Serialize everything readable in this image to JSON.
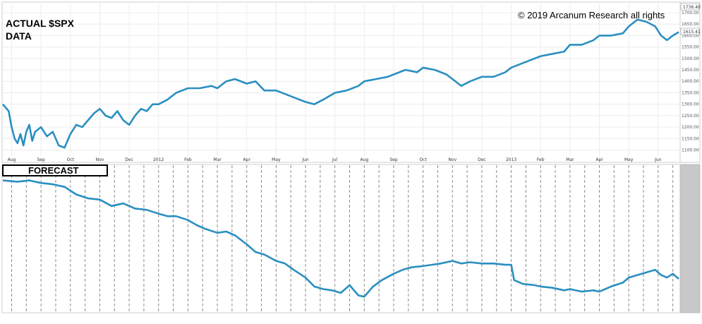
{
  "chart_data": [
    {
      "type": "line",
      "title": "ACTUAL $SPX",
      "subtitle": "DATA",
      "annotation": "© 2019 Arcanum Research all rights",
      "last_value_label": "1615.41",
      "high_value_label": "1736.40",
      "ylim": [
        1080,
        1740
      ],
      "yticks": [
        "1700.00",
        "1650.00",
        "1600.00",
        "1550.00",
        "1500.00",
        "1450.00",
        "1400.00",
        "1350.00",
        "1300.00",
        "1250.00",
        "1200.00",
        "1150.00",
        "1100.00"
      ],
      "ytick_values": [
        1700,
        1650,
        1600,
        1550,
        1500,
        1450,
        1400,
        1350,
        1300,
        1250,
        1200,
        1150,
        1100
      ],
      "xticks": [
        "Aug",
        "Sep",
        "Oct",
        "Nov",
        "Dec",
        "2012",
        "Feb",
        "Mar",
        "Apr",
        "May",
        "Jun",
        "Jul",
        "Aug",
        "Sep",
        "Oct",
        "Nov",
        "Dec",
        "2013",
        "Feb",
        "Mar",
        "Apr",
        "May",
        "Jun"
      ],
      "xtick_months": [
        0,
        1,
        2,
        3,
        4,
        5,
        6,
        7,
        8,
        9,
        10,
        11,
        12,
        13,
        14,
        15,
        16,
        17,
        18,
        19,
        20,
        21,
        22
      ],
      "x_range_months": [
        -0.3,
        22.7
      ],
      "grid": true,
      "color": "#2a8fc1",
      "series": [
        {
          "x": [
            -0.3,
            -0.1,
            0.0,
            0.1,
            0.2,
            0.3,
            0.4,
            0.5,
            0.6,
            0.7,
            0.8,
            1.0,
            1.2,
            1.4,
            1.6,
            1.8,
            2.0,
            2.2,
            2.4,
            2.6,
            2.8,
            3.0,
            3.2,
            3.4,
            3.6,
            3.8,
            4.0,
            4.2,
            4.4,
            4.6,
            4.8,
            5.0,
            5.3,
            5.6,
            6.0,
            6.4,
            6.8,
            7.0,
            7.3,
            7.6,
            8.0,
            8.3,
            8.6,
            9.0,
            9.4,
            9.8,
            10.0,
            10.3,
            10.6,
            11.0,
            11.4,
            11.8,
            12.0,
            12.4,
            12.8,
            13.0,
            13.4,
            13.8,
            14.0,
            14.4,
            14.8,
            15.0,
            15.3,
            15.6,
            16.0,
            16.4,
            16.8,
            17.0,
            17.4,
            17.8,
            18.0,
            18.4,
            18.8,
            19.0,
            19.4,
            19.8,
            20.0,
            20.4,
            20.8,
            21.0,
            21.3,
            21.6,
            21.9,
            22.1,
            22.3,
            22.5,
            22.7
          ],
          "values": [
            1300,
            1270,
            1200,
            1150,
            1130,
            1170,
            1120,
            1180,
            1210,
            1140,
            1180,
            1200,
            1160,
            1180,
            1120,
            1110,
            1170,
            1210,
            1200,
            1230,
            1260,
            1280,
            1250,
            1240,
            1270,
            1230,
            1210,
            1250,
            1280,
            1270,
            1300,
            1300,
            1320,
            1350,
            1370,
            1370,
            1380,
            1370,
            1400,
            1410,
            1390,
            1400,
            1360,
            1360,
            1340,
            1320,
            1310,
            1300,
            1320,
            1350,
            1360,
            1380,
            1400,
            1410,
            1420,
            1430,
            1450,
            1440,
            1460,
            1450,
            1430,
            1410,
            1380,
            1400,
            1420,
            1420,
            1440,
            1460,
            1480,
            1500,
            1510,
            1520,
            1530,
            1560,
            1560,
            1580,
            1600,
            1600,
            1610,
            1640,
            1670,
            1660,
            1640,
            1600,
            1580,
            1600,
            1615
          ]
        }
      ]
    },
    {
      "type": "line",
      "title": "FORECAST",
      "ylim": [
        0,
        1
      ],
      "x_range_months": [
        -0.3,
        22.7
      ],
      "series": [
        {
          "x": [
            -0.3,
            0.2,
            0.6,
            1.0,
            1.4,
            1.8,
            2.2,
            2.6,
            3.0,
            3.4,
            3.8,
            4.2,
            4.6,
            5.0,
            5.3,
            5.6,
            6.0,
            6.3,
            6.6,
            7.0,
            7.3,
            7.6,
            8.0,
            8.3,
            8.6,
            9.0,
            9.3,
            9.6,
            10.0,
            10.3,
            10.6,
            10.9,
            11.2,
            11.5,
            11.8,
            12.0,
            12.3,
            12.6,
            13.0,
            13.3,
            13.6,
            14.0,
            14.3,
            14.6,
            15.0,
            15.3,
            15.6,
            16.0,
            16.4,
            16.8,
            17.0,
            17.1,
            17.4,
            17.8,
            18.0,
            18.4,
            18.8,
            19.0,
            19.4,
            19.8,
            20.0,
            20.4,
            20.8,
            21.0,
            21.3,
            21.6,
            21.9,
            22.1,
            22.3,
            22.5,
            22.7
          ],
          "values": [
            0.98,
            0.97,
            0.98,
            0.96,
            0.95,
            0.93,
            0.87,
            0.84,
            0.83,
            0.78,
            0.8,
            0.76,
            0.75,
            0.72,
            0.7,
            0.7,
            0.67,
            0.63,
            0.6,
            0.57,
            0.58,
            0.55,
            0.48,
            0.42,
            0.4,
            0.35,
            0.33,
            0.28,
            0.22,
            0.15,
            0.13,
            0.12,
            0.1,
            0.16,
            0.08,
            0.07,
            0.15,
            0.2,
            0.25,
            0.28,
            0.3,
            0.31,
            0.32,
            0.33,
            0.35,
            0.33,
            0.34,
            0.33,
            0.33,
            0.32,
            0.32,
            0.2,
            0.17,
            0.16,
            0.15,
            0.14,
            0.12,
            0.13,
            0.11,
            0.12,
            0.11,
            0.15,
            0.18,
            0.22,
            0.24,
            0.26,
            0.28,
            0.24,
            0.22,
            0.25,
            0.21
          ]
        }
      ]
    }
  ]
}
